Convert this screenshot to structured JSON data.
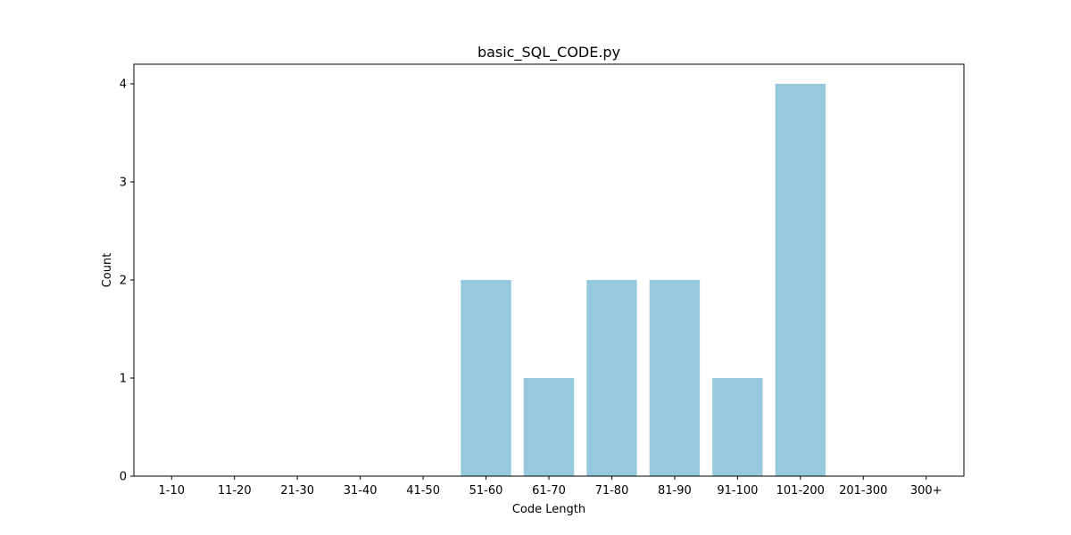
{
  "chart_data": {
    "type": "bar",
    "title": "basic_SQL_CODE.py",
    "xlabel": "Code Length",
    "ylabel": "Count",
    "categories": [
      "1-10",
      "11-20",
      "21-30",
      "31-40",
      "41-50",
      "51-60",
      "61-70",
      "71-80",
      "81-90",
      "91-100",
      "101-200",
      "201-300",
      "300+"
    ],
    "values": [
      0,
      0,
      0,
      0,
      0,
      2,
      1,
      2,
      2,
      1,
      4,
      0,
      0
    ],
    "ylim": [
      0,
      4.2
    ],
    "yticks": [
      0,
      1,
      2,
      3,
      4
    ],
    "bar_color": "#96c9dd",
    "grid": false,
    "legend": "none"
  }
}
